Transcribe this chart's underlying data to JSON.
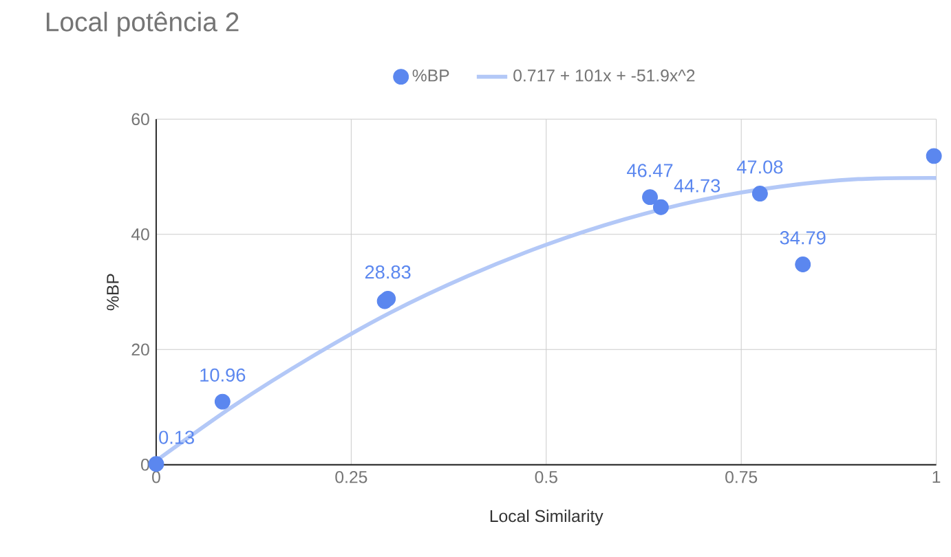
{
  "chart_data": {
    "type": "scatter",
    "title": "Local potência 2",
    "xlabel": "Local Similarity",
    "ylabel": "%BP",
    "xlim": [
      0,
      1
    ],
    "xticks": [
      0,
      0.25,
      0.5,
      0.75,
      1
    ],
    "ylim": [
      0,
      60
    ],
    "yticks": [
      0,
      20,
      40,
      60
    ],
    "grid": true,
    "legend": "top",
    "marker": "circle",
    "series": [
      {
        "name": "%BP",
        "color": "#5b87ef",
        "x": [
          0,
          0.085,
          0.293,
          0.297,
          0.633,
          0.647,
          0.774,
          0.829,
          0.997
        ],
        "values": [
          0.13,
          10.96,
          28.4,
          28.83,
          46.47,
          44.73,
          47.08,
          34.79,
          53.6
        ],
        "value_labels": [
          "0.13",
          "10.96",
          null,
          "28.83",
          "46.47",
          "44.73",
          "47.08",
          "34.79",
          null
        ]
      },
      {
        "name": "0.717 + 101x + -51.9x^2",
        "type": "line",
        "marker": "none",
        "color": "#b3c8f7",
        "x": [
          0,
          0.1,
          0.2,
          0.3,
          0.4,
          0.5,
          0.6,
          0.7,
          0.8,
          0.9,
          1
        ],
        "values": [
          0.7,
          10.3,
          18.8,
          26.4,
          32.8,
          38.2,
          42.6,
          46.0,
          48.3,
          49.6,
          49.8
        ]
      }
    ]
  }
}
